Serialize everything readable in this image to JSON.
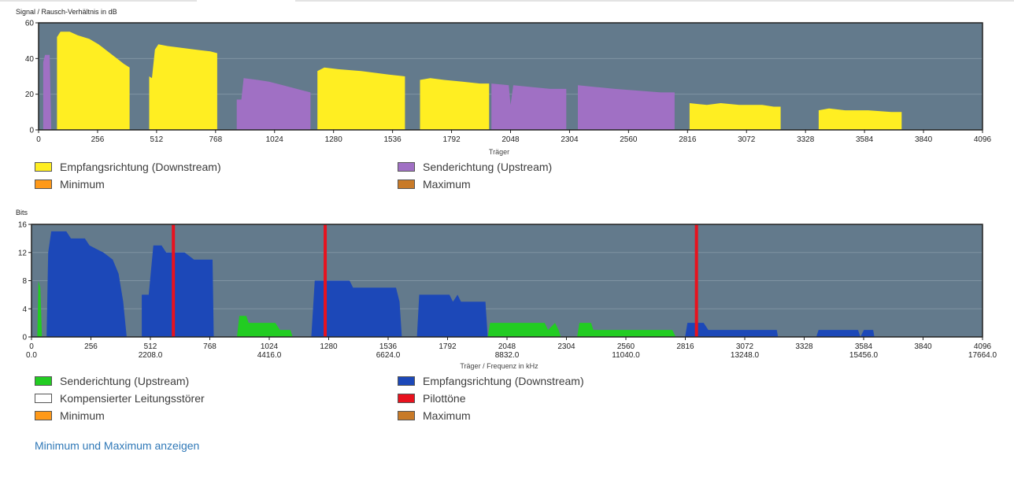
{
  "chart_data": [
    {
      "type": "area",
      "ylabel": "Signal / Rausch-Verhältnis in dB",
      "xlabel": "Träger",
      "xlim": [
        0,
        4096
      ],
      "ylim": [
        0,
        60
      ],
      "x_ticks": [
        "0",
        "256",
        "512",
        "768",
        "1024",
        "1280",
        "1536",
        "1792",
        "2048",
        "2304",
        "2560",
        "2816",
        "3072",
        "3328",
        "3584",
        "3840",
        "4096"
      ],
      "y_ticks": [
        "0",
        "20",
        "40",
        "60"
      ],
      "background": "#637a8c",
      "grid": true,
      "series": [
        {
          "name": "Empfangsrichtung (Downstream)",
          "color": "#ffee22",
          "points": [
            [
              80,
              0
            ],
            [
              80,
              52
            ],
            [
              95,
              55
            ],
            [
              135,
              55
            ],
            [
              170,
              53
            ],
            [
              220,
              51
            ],
            [
              260,
              48
            ],
            [
              300,
              44
            ],
            [
              340,
              40
            ],
            [
              370,
              37
            ],
            [
              395,
              35
            ],
            [
              395,
              0
            ],
            [
              null,
              null
            ],
            [
              480,
              0
            ],
            [
              480,
              30
            ],
            [
              492,
              29
            ],
            [
              505,
              45
            ],
            [
              520,
              48
            ],
            [
              560,
              47
            ],
            [
              620,
              46
            ],
            [
              680,
              45
            ],
            [
              745,
              44
            ],
            [
              775,
              43
            ],
            [
              775,
              0
            ],
            [
              null,
              null
            ],
            [
              1210,
              0
            ],
            [
              1210,
              33
            ],
            [
              1240,
              35
            ],
            [
              1300,
              34
            ],
            [
              1400,
              33
            ],
            [
              1460,
              32
            ],
            [
              1520,
              31
            ],
            [
              1590,
              30
            ],
            [
              1590,
              0
            ],
            [
              null,
              null
            ],
            [
              1655,
              0
            ],
            [
              1655,
              28
            ],
            [
              1700,
              29
            ],
            [
              1760,
              28
            ],
            [
              1840,
              27
            ],
            [
              1915,
              26
            ],
            [
              1955,
              26
            ],
            [
              1955,
              0
            ],
            [
              null,
              null
            ],
            [
              2825,
              0
            ],
            [
              2825,
              15
            ],
            [
              2900,
              14
            ],
            [
              2960,
              15
            ],
            [
              3040,
              14
            ],
            [
              3140,
              14
            ],
            [
              3190,
              13
            ],
            [
              3220,
              13
            ],
            [
              3220,
              0
            ],
            [
              null,
              null
            ],
            [
              3385,
              0
            ],
            [
              3385,
              11
            ],
            [
              3430,
              12
            ],
            [
              3500,
              11
            ],
            [
              3600,
              11
            ],
            [
              3700,
              10
            ],
            [
              3745,
              10
            ],
            [
              3745,
              0
            ]
          ]
        },
        {
          "name": "Senderichtung (Upstream)",
          "color": "#a070c4",
          "points": [
            [
              20,
              0
            ],
            [
              20,
              38
            ],
            [
              28,
              42
            ],
            [
              48,
              42
            ],
            [
              55,
              0
            ],
            [
              null,
              null
            ],
            [
              860,
              0
            ],
            [
              860,
              17
            ],
            [
              880,
              17
            ],
            [
              890,
              29
            ],
            [
              950,
              28
            ],
            [
              1000,
              27
            ],
            [
              1060,
              25
            ],
            [
              1120,
              23
            ],
            [
              1180,
              21
            ],
            [
              1180,
              0
            ],
            [
              null,
              null
            ],
            [
              1965,
              0
            ],
            [
              1965,
              26
            ],
            [
              2040,
              25
            ],
            [
              2048,
              14
            ],
            [
              2060,
              25
            ],
            [
              2140,
              24
            ],
            [
              2220,
              23
            ],
            [
              2290,
              23
            ],
            [
              2290,
              0
            ],
            [
              null,
              null
            ],
            [
              2340,
              0
            ],
            [
              2340,
              25
            ],
            [
              2420,
              24
            ],
            [
              2500,
              23
            ],
            [
              2600,
              22
            ],
            [
              2700,
              21
            ],
            [
              2760,
              21
            ],
            [
              2760,
              0
            ]
          ]
        },
        {
          "name": "Minimum",
          "color": "#ff9918",
          "points": []
        },
        {
          "name": "Maximum",
          "color": "#c87a28",
          "points": []
        }
      ]
    },
    {
      "type": "area",
      "ylabel": "Bits",
      "xlabel": "Träger / Frequenz in kHz",
      "xlim": [
        0,
        4096
      ],
      "ylim": [
        0,
        16
      ],
      "x_ticks": [
        "0",
        "256",
        "512",
        "768",
        "1024",
        "1280",
        "1536",
        "1792",
        "2048",
        "2304",
        "2560",
        "2816",
        "3072",
        "3328",
        "3584",
        "3840",
        "4096"
      ],
      "x_ticks_secondary": [
        "0.0",
        "2208.0",
        "4416.0",
        "6624.0",
        "8832.0",
        "11040.0",
        "13248.0",
        "15456.0",
        "17664.0"
      ],
      "y_ticks": [
        "0",
        "4",
        "8",
        "12",
        "16"
      ],
      "background": "#637a8c",
      "grid": true,
      "series": [
        {
          "name": "Senderichtung (Upstream)",
          "color": "#22cc22",
          "points": [
            [
              25,
              0
            ],
            [
              30,
              8
            ],
            [
              38,
              7
            ],
            [
              45,
              0
            ],
            [
              null,
              null
            ],
            [
              885,
              0
            ],
            [
              895,
              3
            ],
            [
              925,
              3
            ],
            [
              935,
              2
            ],
            [
              1050,
              2
            ],
            [
              1070,
              1
            ],
            [
              1115,
              1
            ],
            [
              1125,
              0
            ],
            [
              null,
              null
            ],
            [
              1965,
              0
            ],
            [
              1975,
              2
            ],
            [
              2210,
              2
            ],
            [
              2225,
              1
            ],
            [
              2255,
              2
            ],
            [
              2270,
              1
            ],
            [
              2280,
              0
            ],
            [
              null,
              null
            ],
            [
              2350,
              0
            ],
            [
              2360,
              2
            ],
            [
              2410,
              2
            ],
            [
              2420,
              1
            ],
            [
              2760,
              1
            ],
            [
              2775,
              0
            ]
          ]
        },
        {
          "name": "Empfangsrichtung (Downstream)",
          "color": "#1c48b8",
          "points": [
            [
              65,
              0
            ],
            [
              72,
              12
            ],
            [
              85,
              15
            ],
            [
              150,
              15
            ],
            [
              170,
              14
            ],
            [
              230,
              14
            ],
            [
              250,
              13
            ],
            [
              310,
              12
            ],
            [
              350,
              11
            ],
            [
              375,
              9
            ],
            [
              395,
              5
            ],
            [
              410,
              0
            ],
            [
              null,
              null
            ],
            [
              475,
              0
            ],
            [
              475,
              6
            ],
            [
              505,
              6
            ],
            [
              525,
              13
            ],
            [
              560,
              13
            ],
            [
              580,
              12
            ],
            [
              660,
              12
            ],
            [
              700,
              11
            ],
            [
              780,
              11
            ],
            [
              785,
              0
            ],
            [
              null,
              null
            ],
            [
              1205,
              0
            ],
            [
              1220,
              8
            ],
            [
              1370,
              8
            ],
            [
              1385,
              7
            ],
            [
              1570,
              7
            ],
            [
              1585,
              5
            ],
            [
              1595,
              0
            ],
            [
              null,
              null
            ],
            [
              1660,
              0
            ],
            [
              1670,
              6
            ],
            [
              1800,
              6
            ],
            [
              1815,
              5
            ],
            [
              1835,
              6
            ],
            [
              1850,
              5
            ],
            [
              1955,
              5
            ],
            [
              1965,
              0
            ],
            [
              null,
              null
            ],
            [
              2815,
              0
            ],
            [
              2825,
              2
            ],
            [
              2895,
              2
            ],
            [
              2915,
              1
            ],
            [
              3210,
              1
            ],
            [
              3215,
              0
            ],
            [
              null,
              null
            ],
            [
              3380,
              0
            ],
            [
              3390,
              1
            ],
            [
              3560,
              1
            ],
            [
              3570,
              0
            ],
            [
              3585,
              1
            ],
            [
              3625,
              1
            ],
            [
              3630,
              0
            ]
          ]
        },
        {
          "name": "Pilottöne",
          "color": "#e8121e",
          "carriers": [
            611,
            1265,
            2864
          ]
        },
        {
          "name": "Kompensierter Leitungsstörer",
          "color": "#ffffff",
          "points": []
        },
        {
          "name": "Minimum",
          "color": "#ff9918",
          "points": []
        },
        {
          "name": "Maximum",
          "color": "#c87a28",
          "points": []
        }
      ]
    }
  ],
  "legend1": [
    {
      "label": "Empfangsrichtung (Downstream)",
      "color": "#ffee22"
    },
    {
      "label": "Minimum",
      "color": "#ff9918"
    },
    {
      "label": "Senderichtung (Upstream)",
      "color": "#a070c4"
    },
    {
      "label": "Maximum",
      "color": "#c87a28"
    }
  ],
  "legend2": [
    {
      "label": "Senderichtung (Upstream)",
      "color": "#22cc22"
    },
    {
      "label": "Kompensierter Leitungsstörer",
      "color": "#ffffff"
    },
    {
      "label": "Minimum",
      "color": "#ff9918"
    },
    {
      "label": "Empfangsrichtung (Downstream)",
      "color": "#1c48b8"
    },
    {
      "label": "Pilottöne",
      "color": "#e8121e"
    },
    {
      "label": "Maximum",
      "color": "#c87a28"
    }
  ],
  "link_label": "Minimum und Maximum anzeigen"
}
